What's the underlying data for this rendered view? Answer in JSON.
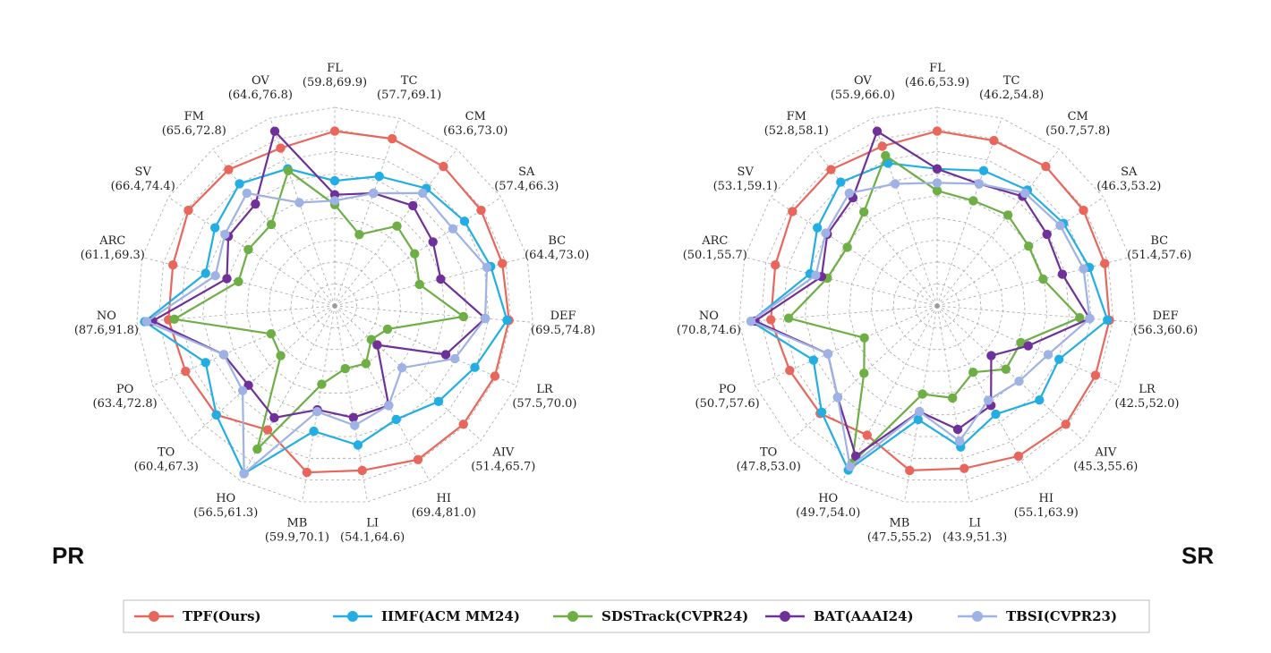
{
  "series_styles": [
    {
      "name": "TPF(Ours)",
      "color": "#E8665C"
    },
    {
      "name": "IIMF(ACM MM24)",
      "color": "#22AEE3"
    },
    {
      "name": "SDSTrack(CVPR24)",
      "color": "#6DAE45"
    },
    {
      "name": "BAT(AAAI24)",
      "color": "#6F3199"
    },
    {
      "name": "TBSI(CVPR23)",
      "color": "#9FB2E6"
    }
  ],
  "chart_data": [
    {
      "type": "radar",
      "tag": "PR",
      "axes": [
        {
          "name": "FL",
          "range": "(59.8,69.9)"
        },
        {
          "name": "TC",
          "range": "(57.7,69.1)"
        },
        {
          "name": "CM",
          "range": "(63.6,73.0)"
        },
        {
          "name": "SA",
          "range": "(57.4,66.3)"
        },
        {
          "name": "BC",
          "range": "(64.4,73.0)"
        },
        {
          "name": "DEF",
          "range": "(69.5,74.8)"
        },
        {
          "name": "LR",
          "range": "(57.5,70.0)"
        },
        {
          "name": "AIV",
          "range": "(51.4,65.7)"
        },
        {
          "name": "HI",
          "range": "(69.4,81.0)"
        },
        {
          "name": "LI",
          "range": "(54.1,64.6)"
        },
        {
          "name": "MB",
          "range": "(59.9,70.1)"
        },
        {
          "name": "HO",
          "range": "(56.5,61.3)"
        },
        {
          "name": "TO",
          "range": "(60.4,67.3)"
        },
        {
          "name": "PO",
          "range": "(63.4,72.8)"
        },
        {
          "name": "NO",
          "range": "(87.6,91.8)"
        },
        {
          "name": "ARC",
          "range": "(61.1,69.3)"
        },
        {
          "name": "SV",
          "range": "(66.4,74.4)"
        },
        {
          "name": "FM",
          "range": "(65.6,72.8)"
        },
        {
          "name": "OV",
          "range": "(64.6,76.8)"
        }
      ],
      "series": [
        {
          "name": "TPF(Ours)",
          "values": [
            0.88,
            0.89,
            0.89,
            0.88,
            0.87,
            0.88,
            0.88,
            0.88,
            0.88,
            0.84,
            0.85,
            0.71,
            0.81,
            0.82,
            0.84,
            0.84,
            0.88,
            0.87,
            0.84
          ]
        },
        {
          "name": "IIMF(ACM MM24)",
          "values": [
            0.63,
            0.69,
            0.75,
            0.78,
            0.81,
            0.87,
            0.77,
            0.71,
            0.65,
            0.71,
            0.64,
            0.96,
            0.81,
            0.71,
            0.96,
            0.67,
            0.72,
            0.78,
            0.73
          ]
        },
        {
          "name": "SDSTrack(CVPR24)",
          "values": [
            0.51,
            0.38,
            0.51,
            0.48,
            0.44,
            0.65,
            0.29,
            0.25,
            0.33,
            0.32,
            0.4,
            0.82,
            0.37,
            0.35,
            0.81,
            0.5,
            0.52,
            0.52,
            0.72
          ]
        },
        {
          "name": "BAT(AAAI24)",
          "values": [
            0.56,
            0.6,
            0.64,
            0.59,
            0.55,
            0.76,
            0.61,
            0.29,
            0.57,
            0.57,
            0.53,
            0.64,
            0.59,
            0.61,
            0.92,
            0.56,
            0.64,
            0.65,
            0.93
          ]
        },
        {
          "name": "TBSI(CVPR23)",
          "values": [
            0.53,
            0.6,
            0.72,
            0.71,
            0.79,
            0.76,
            0.66,
            0.46,
            0.57,
            0.61,
            0.54,
            0.96,
            0.63,
            0.61,
            0.95,
            0.62,
            0.66,
            0.72,
            0.55
          ]
        }
      ]
    },
    {
      "type": "radar",
      "tag": "SR",
      "axes": [
        {
          "name": "FL",
          "range": "(46.6,53.9)"
        },
        {
          "name": "TC",
          "range": "(46.2,54.8)"
        },
        {
          "name": "CM",
          "range": "(50.7,57.8)"
        },
        {
          "name": "SA",
          "range": "(46.3,53.2)"
        },
        {
          "name": "BC",
          "range": "(51.4,57.6)"
        },
        {
          "name": "DEF",
          "range": "(56.3,60.6)"
        },
        {
          "name": "LR",
          "range": "(42.5,52.0)"
        },
        {
          "name": "AIV",
          "range": "(45.3,55.6)"
        },
        {
          "name": "HI",
          "range": "(55.1,63.9)"
        },
        {
          "name": "LI",
          "range": "(43.9,51.3)"
        },
        {
          "name": "MB",
          "range": "(47.5,55.2)"
        },
        {
          "name": "HO",
          "range": "(49.7,54.0)"
        },
        {
          "name": "TO",
          "range": "(47.8,53.0)"
        },
        {
          "name": "PO",
          "range": "(50.7,57.6)"
        },
        {
          "name": "NO",
          "range": "(70.8,74.6)"
        },
        {
          "name": "ARC",
          "range": "(50.1,55.7)"
        },
        {
          "name": "SV",
          "range": "(53.1,59.1)"
        },
        {
          "name": "FM",
          "range": "(52.8,58.1)"
        },
        {
          "name": "OV",
          "range": "(55.9,66.0)"
        }
      ],
      "series": [
        {
          "name": "TPF(Ours)",
          "values": [
            0.88,
            0.88,
            0.89,
            0.88,
            0.87,
            0.87,
            0.87,
            0.88,
            0.86,
            0.83,
            0.84,
            0.74,
            0.8,
            0.81,
            0.84,
            0.84,
            0.87,
            0.87,
            0.85
          ]
        },
        {
          "name": "IIMF(ACM MM24)",
          "values": [
            0.69,
            0.72,
            0.74,
            0.76,
            0.79,
            0.86,
            0.67,
            0.7,
            0.62,
            0.72,
            0.58,
            0.94,
            0.79,
            0.68,
            0.94,
            0.66,
            0.72,
            0.79,
            0.76
          ]
        },
        {
          "name": "SDSTrack(CVPR24)",
          "values": [
            0.58,
            0.56,
            0.58,
            0.55,
            0.55,
            0.72,
            0.46,
            0.47,
            0.38,
            0.47,
            0.45,
            0.9,
            0.5,
            0.4,
            0.75,
            0.57,
            0.54,
            0.6,
            0.8
          ]
        },
        {
          "name": "BAT(AAAI24)",
          "values": [
            0.69,
            0.65,
            0.7,
            0.66,
            0.65,
            0.77,
            0.5,
            0.37,
            0.57,
            0.63,
            0.54,
            0.86,
            0.68,
            0.6,
            0.92,
            0.6,
            0.66,
            0.69,
            0.93
          ]
        },
        {
          "name": "TBSI(CVPR23)",
          "values": [
            0.62,
            0.65,
            0.72,
            0.74,
            0.76,
            0.77,
            0.61,
            0.56,
            0.54,
            0.69,
            0.54,
            0.92,
            0.68,
            0.6,
            0.94,
            0.63,
            0.67,
            0.72,
            0.65
          ]
        }
      ]
    }
  ]
}
